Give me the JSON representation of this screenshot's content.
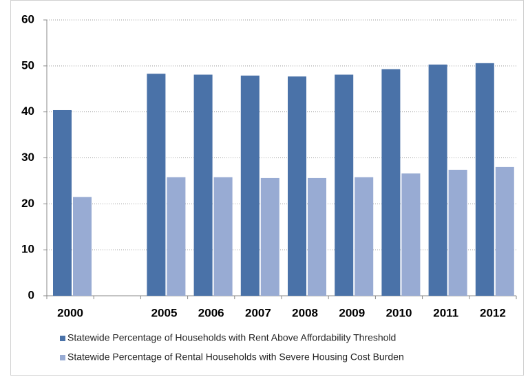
{
  "chart_data": {
    "type": "bar",
    "categories": [
      "2000",
      null,
      "2005",
      "2006",
      "2007",
      "2008",
      "2009",
      "2010",
      "2011",
      "2012"
    ],
    "series": [
      {
        "name": "Statewide Percentage of Households with Rent Above Affordability Threshold",
        "color": "#4a72a8",
        "values": [
          40.4,
          null,
          48.3,
          48.1,
          47.9,
          47.7,
          48.1,
          49.3,
          50.3,
          50.6
        ]
      },
      {
        "name": "Statewide Percentage of Rental Households with Severe Housing Cost Burden",
        "color": "#98abd3",
        "values": [
          21.5,
          null,
          25.8,
          25.8,
          25.6,
          25.6,
          25.8,
          26.6,
          27.4,
          28.0
        ]
      }
    ],
    "ylim": [
      0,
      60
    ],
    "yticks": [
      0,
      10,
      20,
      30,
      40,
      50,
      60
    ],
    "grid": true,
    "legend": "bottom"
  }
}
